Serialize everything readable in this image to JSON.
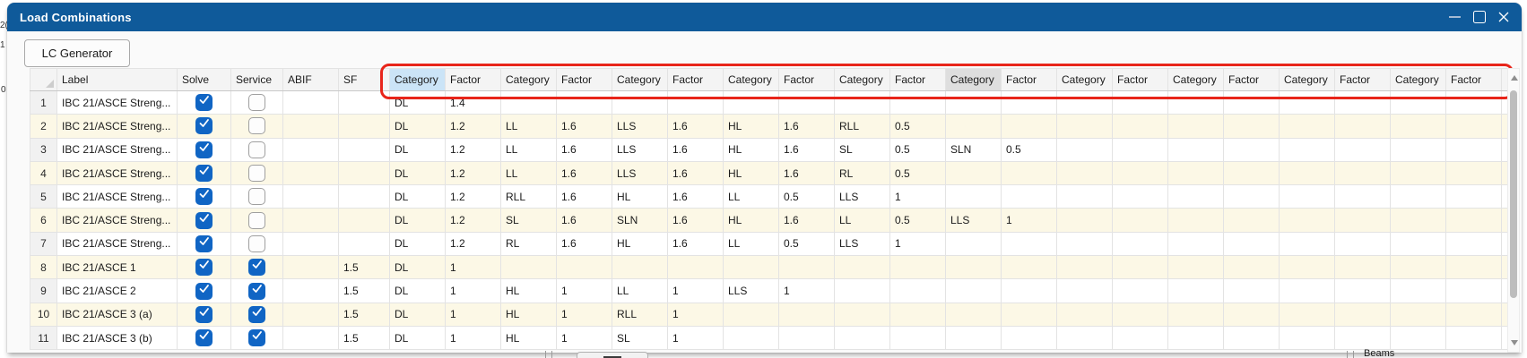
{
  "window": {
    "title": "Load Combinations"
  },
  "toolbar": {
    "lc_generator_label": "LC Generator"
  },
  "table": {
    "fixed_headers": [
      "",
      "Label",
      "Solve",
      "Service",
      "ABIF",
      "SF"
    ],
    "pair_headers": {
      "category": "Category",
      "factor": "Factor"
    },
    "pair_count": 10,
    "selected_category_index": 0,
    "hovered_category_index": 5,
    "rows": [
      {
        "num": "1",
        "label": "IBC 21/ASCE Streng...",
        "solve": true,
        "service": false,
        "abif": "",
        "sf": "",
        "pairs": [
          [
            "DL",
            "1.4"
          ]
        ]
      },
      {
        "num": "2",
        "label": "IBC 21/ASCE Streng...",
        "solve": true,
        "service": false,
        "abif": "",
        "sf": "",
        "pairs": [
          [
            "DL",
            "1.2"
          ],
          [
            "LL",
            "1.6"
          ],
          [
            "LLS",
            "1.6"
          ],
          [
            "HL",
            "1.6"
          ],
          [
            "RLL",
            "0.5"
          ]
        ]
      },
      {
        "num": "3",
        "label": "IBC 21/ASCE Streng...",
        "solve": true,
        "service": false,
        "abif": "",
        "sf": "",
        "pairs": [
          [
            "DL",
            "1.2"
          ],
          [
            "LL",
            "1.6"
          ],
          [
            "LLS",
            "1.6"
          ],
          [
            "HL",
            "1.6"
          ],
          [
            "SL",
            "0.5"
          ],
          [
            "SLN",
            "0.5"
          ]
        ]
      },
      {
        "num": "4",
        "label": "IBC 21/ASCE Streng...",
        "solve": true,
        "service": false,
        "abif": "",
        "sf": "",
        "pairs": [
          [
            "DL",
            "1.2"
          ],
          [
            "LL",
            "1.6"
          ],
          [
            "LLS",
            "1.6"
          ],
          [
            "HL",
            "1.6"
          ],
          [
            "RL",
            "0.5"
          ]
        ]
      },
      {
        "num": "5",
        "label": "IBC 21/ASCE Streng...",
        "solve": true,
        "service": false,
        "abif": "",
        "sf": "",
        "pairs": [
          [
            "DL",
            "1.2"
          ],
          [
            "RLL",
            "1.6"
          ],
          [
            "HL",
            "1.6"
          ],
          [
            "LL",
            "0.5"
          ],
          [
            "LLS",
            "1"
          ]
        ]
      },
      {
        "num": "6",
        "label": "IBC 21/ASCE Streng...",
        "solve": true,
        "service": false,
        "abif": "",
        "sf": "",
        "pairs": [
          [
            "DL",
            "1.2"
          ],
          [
            "SL",
            "1.6"
          ],
          [
            "SLN",
            "1.6"
          ],
          [
            "HL",
            "1.6"
          ],
          [
            "LL",
            "0.5"
          ],
          [
            "LLS",
            "1"
          ]
        ]
      },
      {
        "num": "7",
        "label": "IBC 21/ASCE Streng...",
        "solve": true,
        "service": false,
        "abif": "",
        "sf": "",
        "pairs": [
          [
            "DL",
            "1.2"
          ],
          [
            "RL",
            "1.6"
          ],
          [
            "HL",
            "1.6"
          ],
          [
            "LL",
            "0.5"
          ],
          [
            "LLS",
            "1"
          ]
        ]
      },
      {
        "num": "8",
        "label": "IBC 21/ASCE 1",
        "solve": true,
        "service": true,
        "abif": "",
        "sf": "1.5",
        "pairs": [
          [
            "DL",
            "1"
          ]
        ]
      },
      {
        "num": "9",
        "label": "IBC 21/ASCE 2",
        "solve": true,
        "service": true,
        "abif": "",
        "sf": "1.5",
        "pairs": [
          [
            "DL",
            "1"
          ],
          [
            "HL",
            "1"
          ],
          [
            "LL",
            "1"
          ],
          [
            "LLS",
            "1"
          ]
        ]
      },
      {
        "num": "10",
        "label": "IBC 21/ASCE 3 (a)",
        "solve": true,
        "service": true,
        "abif": "",
        "sf": "1.5",
        "pairs": [
          [
            "DL",
            "1"
          ],
          [
            "HL",
            "1"
          ],
          [
            "RLL",
            "1"
          ]
        ]
      },
      {
        "num": "11",
        "label": "IBC 21/ASCE 3 (b)",
        "solve": true,
        "service": true,
        "abif": "",
        "sf": "1.5",
        "pairs": [
          [
            "DL",
            "1"
          ],
          [
            "HL",
            "1"
          ],
          [
            "SL",
            "1"
          ]
        ]
      }
    ]
  },
  "annotation": {
    "color": "#E8251A"
  },
  "fragments": {
    "beams_label": "Beams",
    "left_edge": [
      "2(",
      "1",
      "0"
    ]
  }
}
